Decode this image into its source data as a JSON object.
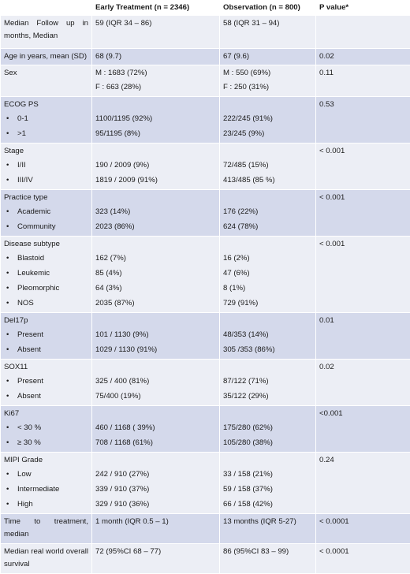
{
  "header": {
    "col1": "",
    "col2": "Early Treatment (n = 2346)",
    "col3": "Observation (n = 800)",
    "col4": "P value*"
  },
  "rows": [
    {
      "label_line1": "Median Follow up in",
      "label_line2": "months, Median",
      "early": "59 (IQR 34 – 86)",
      "obs": "58 (IQR 31 – 94)",
      "p": ""
    },
    {
      "label": "Age in years, mean (SD)",
      "early": "68 (9.7)",
      "obs": "67 (9.6)",
      "p": "0.02"
    },
    {
      "label": "Sex",
      "early_lines": [
        "M : 1683 (72%)",
        "F : 663 (28%)"
      ],
      "obs_lines": [
        "M : 550 (69%)",
        "F : 250 (31%)"
      ],
      "p": "0.11"
    },
    {
      "label": "ECOG PS",
      "items": [
        {
          "bullet": "•",
          "name": "0-1",
          "early": "1100/1195 (92%)",
          "obs": "222/245 (91%)"
        },
        {
          "bullet": "•",
          "name": ">1",
          "early": "95/1195 (8%)",
          "obs": "23/245 (9%)"
        }
      ],
      "p": "0.53"
    },
    {
      "label": "Stage",
      "items": [
        {
          "bullet": "•",
          "name": "I/II",
          "early": "190 / 2009 (9%)",
          "obs": "72/485 (15%)"
        },
        {
          "bullet": "•",
          "name": "III/IV",
          "early": "1819 / 2009 (91%)",
          "obs": "413/485 (85 %)"
        }
      ],
      "p": "< 0.001"
    },
    {
      "label": "Practice type",
      "items": [
        {
          "bullet": "•",
          "name": "Academic",
          "early": "323 (14%)",
          "obs": "176 (22%)"
        },
        {
          "bullet": "•",
          "name": "Community",
          "early": "2023 (86%)",
          "obs": "624 (78%)"
        }
      ],
      "p": "< 0.001"
    },
    {
      "label": "Disease subtype",
      "items": [
        {
          "bullet": "•",
          "name": "Blastoid",
          "early": "162 (7%)",
          "obs": "16 (2%)"
        },
        {
          "bullet": "•",
          "name": "Leukemic",
          "early": "85 (4%)",
          "obs": "47 (6%)"
        },
        {
          "bullet": "•",
          "name": "Pleomorphic",
          "early": "64 (3%)",
          "obs": "8 (1%)"
        },
        {
          "bullet": "•",
          "name": "NOS",
          "early": "2035 (87%)",
          "obs": "729 (91%)"
        }
      ],
      "p": "< 0.001"
    },
    {
      "label": "Del17p",
      "items": [
        {
          "bullet": "•",
          "name": "Present",
          "early": "101 / 1130 (9%)",
          "obs": "48/353 (14%)"
        },
        {
          "bullet": "•",
          "name": "Absent",
          "early": "1029 / 1130 (91%)",
          "obs": "305 /353 (86%)"
        }
      ],
      "p": "0.01"
    },
    {
      "label": "SOX11",
      "items": [
        {
          "bullet": "•",
          "name": "Present",
          "early": "325 / 400 (81%)",
          "obs": "87/122 (71%)"
        },
        {
          "bullet": "•",
          "name": "Absent",
          "early": "75/400 (19%)",
          "obs": "35/122 (29%)"
        }
      ],
      "p": "0.02"
    },
    {
      "label": "Ki67",
      "items": [
        {
          "bullet": "•",
          "name": "< 30 %",
          "early": "460 / 1168 ( 39%)",
          "obs": "175/280 (62%)"
        },
        {
          "bullet": "•",
          "name": "≥ 30 %",
          "early": "708 / 1168 (61%)",
          "obs": "105/280 (38%)"
        }
      ],
      "p": "<0.001"
    },
    {
      "label": "MIPI Grade",
      "items": [
        {
          "bullet": "•",
          "name": "Low",
          "early": "242 / 910 (27%)",
          "obs": "33 / 158 (21%)"
        },
        {
          "bullet": "•",
          "name": "Intermediate",
          "early": "339 / 910 (37%)",
          "obs": "59 / 158 (37%)"
        },
        {
          "bullet": "•",
          "name": "High",
          "early": "329 / 910 (36%)",
          "obs": "66 / 158 (42%)"
        }
      ],
      "p": "0.24"
    },
    {
      "label_line1": "Time to treatment,",
      "label_line2": "median",
      "early": "1 month (IQR 0.5 – 1)",
      "obs": "13 months (IQR 5-27)",
      "p": "< 0.0001"
    },
    {
      "label_line1": "Median real world overall",
      "label_line2": "survival",
      "early": "72 (95%CI 68 – 77)",
      "obs": "86 (95%CI 83 – 99)",
      "p": "< 0.0001"
    }
  ]
}
